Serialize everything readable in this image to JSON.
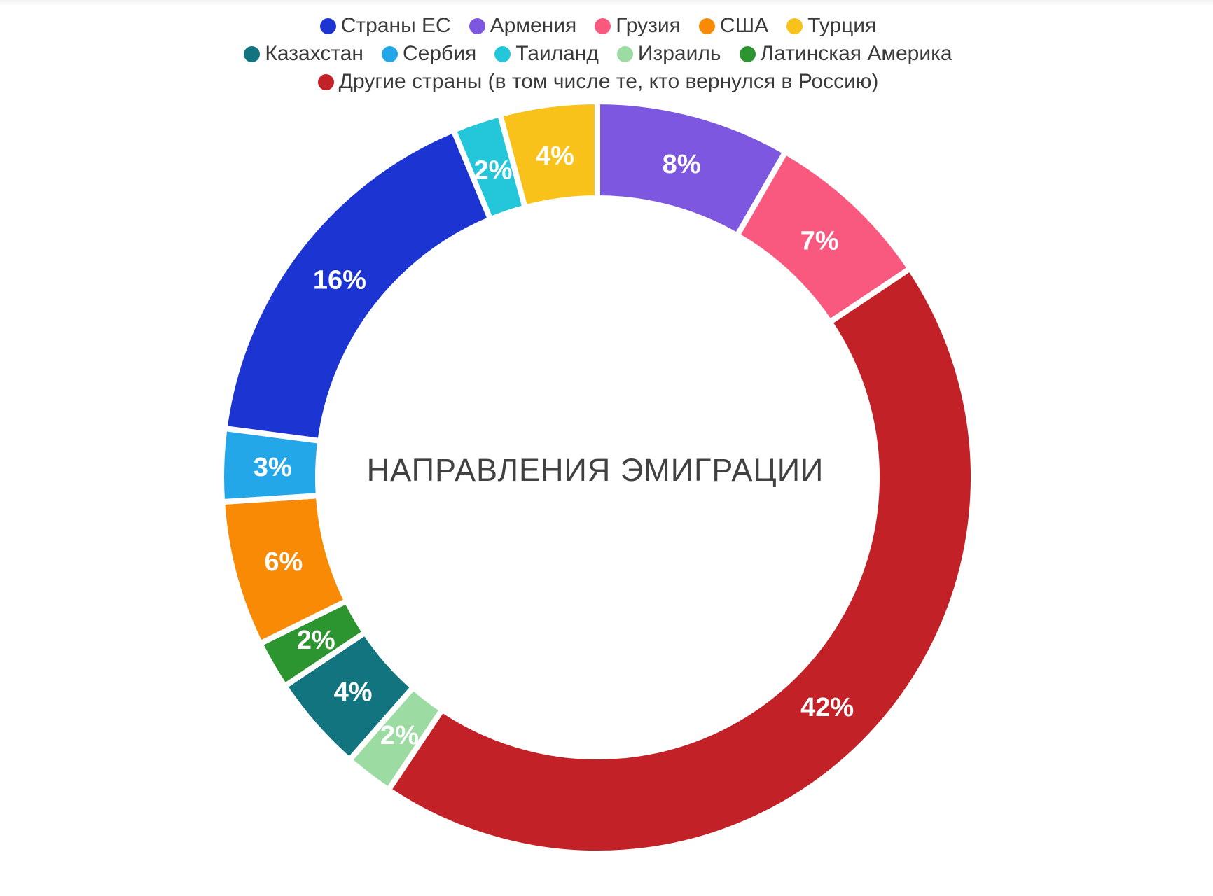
{
  "chart_data": {
    "type": "pie",
    "variant": "donut",
    "title": "НАПРАВЛЕНИЯ ЭМИГРАЦИИ",
    "value_suffix": "%",
    "start_angle_deg": 0,
    "direction": "clockwise",
    "legend_position": "top",
    "segments_clockwise_from_top": [
      {
        "label": "Армения",
        "value": 8,
        "color": "#7d57e0"
      },
      {
        "label": "Грузия",
        "value": 7,
        "color": "#f9597e"
      },
      {
        "label": "Другие страны (в том числе те, кто вернулся в Россию)",
        "value": 42,
        "color": "#c22127"
      },
      {
        "label": "Израиль",
        "value": 2,
        "color": "#9cdca2"
      },
      {
        "label": "Казахстан",
        "value": 4,
        "color": "#11747f"
      },
      {
        "label": "Латинская Америка",
        "value": 2,
        "color": "#2d9530"
      },
      {
        "label": "США",
        "value": 6,
        "color": "#f88a06"
      },
      {
        "label": "Сербия",
        "value": 3,
        "color": "#24a7e8"
      },
      {
        "label": "Страны ЕС",
        "value": 16,
        "color": "#1c34d1"
      },
      {
        "label": "Таиланд",
        "value": 2,
        "color": "#24c6da"
      },
      {
        "label": "Турция",
        "value": 4,
        "color": "#f8c21a"
      }
    ],
    "legend_rows": [
      [
        "Страны ЕС",
        "Армения",
        "Грузия",
        "США",
        "Турция"
      ],
      [
        "Казахстан",
        "Сербия",
        "Таиланд",
        "Израиль",
        "Латинская Америка"
      ],
      [
        "Другие страны (в том числе те, кто вернулся в Россию)"
      ]
    ]
  }
}
